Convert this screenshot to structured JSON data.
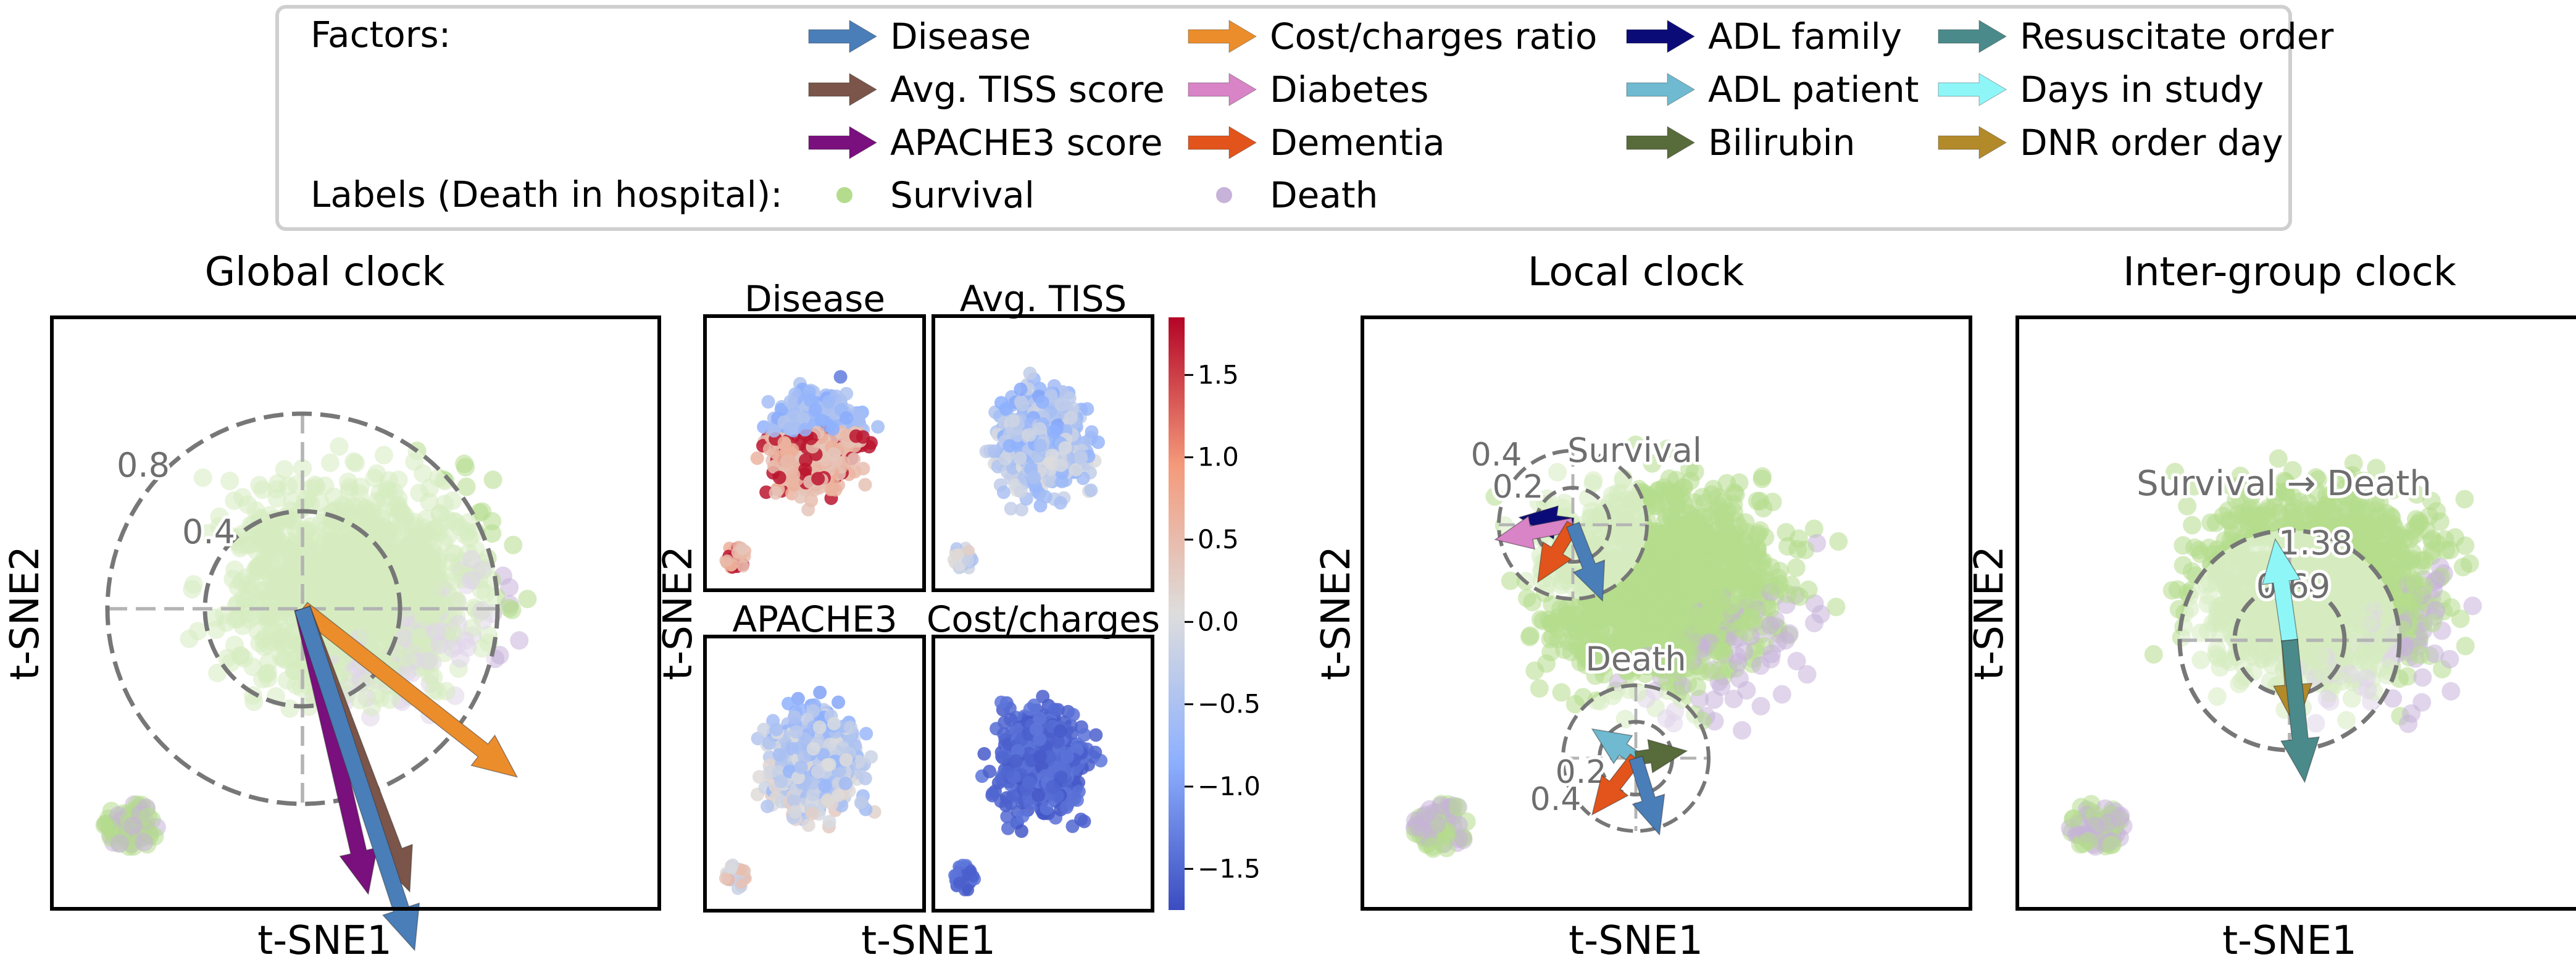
{
  "legend": {
    "factors_label": "Factors:",
    "labels_label": "Labels (Death in hospital):",
    "factors": [
      {
        "name": "Disease",
        "color": "#4a7eb8"
      },
      {
        "name": "Avg. TISS score",
        "color": "#7b5549"
      },
      {
        "name": "APACHE3 score",
        "color": "#7a0f7e"
      },
      {
        "name": "Cost/charges ratio",
        "color": "#ec8d2c"
      },
      {
        "name": "Diabetes",
        "color": "#d884c6"
      },
      {
        "name": "Dementia",
        "color": "#e2541b"
      },
      {
        "name": "ADL family",
        "color": "#0b0b78"
      },
      {
        "name": "ADL patient",
        "color": "#6fbad0"
      },
      {
        "name": "Bilirubin",
        "color": "#586b3a"
      },
      {
        "name": "Resuscitate order",
        "color": "#4a8a8a"
      },
      {
        "name": "Days in study",
        "color": "#8ff6f8"
      },
      {
        "name": "DNR order day",
        "color": "#b38a2a"
      }
    ],
    "labels": [
      {
        "name": "Survival",
        "color": "#b5dc8d"
      },
      {
        "name": "Death",
        "color": "#c7b2d9"
      }
    ]
  },
  "axes": {
    "xlabel": "t-SNE1",
    "ylabel": "t-SNE2"
  },
  "chart_data": [
    {
      "type": "scatter",
      "title": "Global clock",
      "xlabel": "t-SNE1",
      "ylabel": "t-SNE2",
      "groups": [
        "Survival",
        "Death"
      ],
      "rings": [
        "0.8",
        "0.4"
      ],
      "arrows": [
        {
          "factor": "Cost/charges ratio",
          "dx": 0.88,
          "dy": -0.69
        },
        {
          "factor": "Avg. TISS score",
          "dx": 0.44,
          "dy": -1.16
        },
        {
          "factor": "APACHE3 score",
          "dx": 0.27,
          "dy": -1.17
        },
        {
          "factor": "Disease",
          "dx": 0.46,
          "dy": -1.4
        }
      ]
    },
    {
      "type": "heatmap",
      "xlabel": "t-SNE1",
      "ylabel": "t-SNE2",
      "panels": [
        "Disease",
        "Avg. TISS",
        "APACHE3",
        "Cost/charges"
      ],
      "colorbar": {
        "min": -1.75,
        "max": 1.85,
        "ticks": [
          "1.5",
          "1.0",
          "0.5",
          "0.0",
          "−0.5",
          "−1.0",
          "−1.5"
        ],
        "tick_values": [
          1.5,
          1.0,
          0.5,
          0.0,
          -0.5,
          -1.0,
          -1.5
        ],
        "cmap": "coolwarm"
      }
    },
    {
      "type": "scatter",
      "title": "Local clock",
      "xlabel": "t-SNE1",
      "ylabel": "t-SNE2",
      "clocks": [
        {
          "label": "Survival",
          "rings": [
            "0.4",
            "0.2"
          ],
          "arrows": [
            {
              "factor": "ADL family",
              "dx": -0.29,
              "dy": 0.04
            },
            {
              "factor": "Diabetes",
              "dx": -0.42,
              "dy": -0.08
            },
            {
              "factor": "Dementia",
              "dx": -0.19,
              "dy": -0.31
            },
            {
              "factor": "Disease",
              "dx": 0.16,
              "dy": -0.41
            }
          ]
        },
        {
          "label": "Death",
          "rings": [
            "0.2",
            "0.4"
          ],
          "arrows": [
            {
              "factor": "ADL patient",
              "dx": -0.24,
              "dy": 0.16
            },
            {
              "factor": "Bilirubin",
              "dx": 0.28,
              "dy": 0.04
            },
            {
              "factor": "Dementia",
              "dx": -0.24,
              "dy": -0.31
            },
            {
              "factor": "Disease",
              "dx": 0.13,
              "dy": -0.42
            }
          ]
        }
      ]
    },
    {
      "type": "scatter",
      "title": "Inter-group clock",
      "xlabel": "t-SNE1",
      "ylabel": "t-SNE2",
      "clock_label": "Survival → Death",
      "rings": [
        "1.38",
        "0.69"
      ],
      "arrows": [
        {
          "factor": "Days in study",
          "dx": -0.18,
          "dy": 1.27
        },
        {
          "factor": "DNR order day",
          "dx": 0.08,
          "dy": -1.1
        },
        {
          "factor": "Resuscitate order",
          "dx": 0.19,
          "dy": -1.78
        }
      ]
    }
  ]
}
